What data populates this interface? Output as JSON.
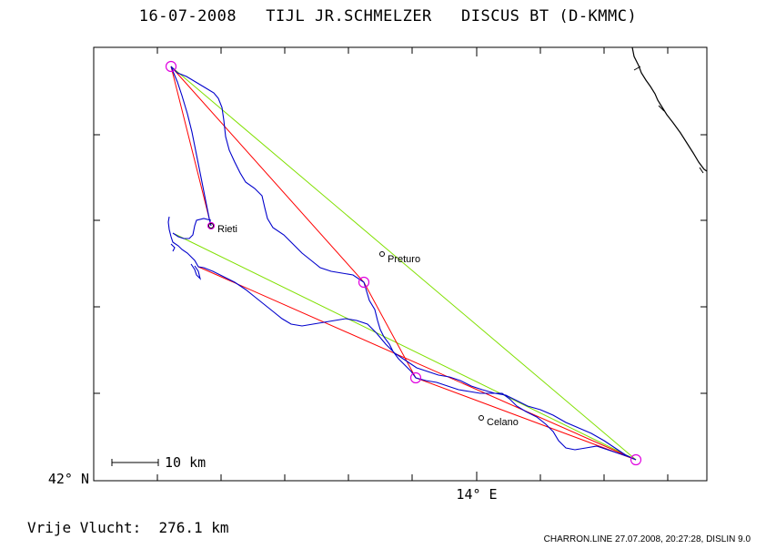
{
  "title": "16-07-2008   TIJL JR.SCHMELZER   DISCUS BT (D-KMMC)",
  "axes": {
    "lat_label": "42° N",
    "lon_label": "14° E"
  },
  "scale_bar": {
    "label": "10 km"
  },
  "towns": [
    {
      "name": "Rieti"
    },
    {
      "name": "Preturo"
    },
    {
      "name": "Celano"
    }
  ],
  "footer": {
    "distance": "Vrije Vlucht:  276.1 km",
    "stamp": "CHARRON.LINE 27.07.2008, 20:27:28, DISLIN 9.0"
  },
  "colors": {
    "track": "#0000cc",
    "task_legs": "#ff0000",
    "free_flight_legs": "#80e000",
    "turnpoints": "#e000e0",
    "border": "#000000"
  }
}
